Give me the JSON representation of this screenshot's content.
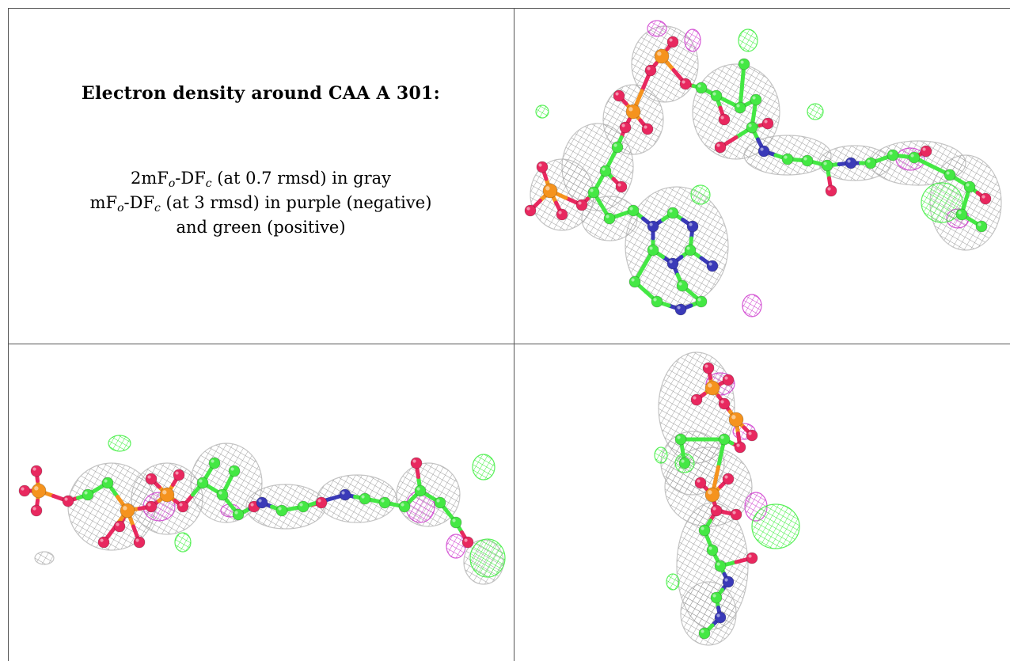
{
  "caption": {
    "title": "Electron density around CAA A 301:",
    "line1_prefix": "2mF",
    "line1_sub1": "o",
    "line1_mid": "-DF",
    "line1_sub2": "c",
    "line1_suffix": " (at 0.7 rmsd) in gray",
    "line2_prefix": "mF",
    "line2_sub1": "o",
    "line2_mid": "-DF",
    "line2_sub2": "c",
    "line2_suffix": " (at 3 rmsd) in purple (negative)",
    "line3": "and green (positive)"
  },
  "colors": {
    "mesh_gray": "#9a9a9a",
    "negative_density": "#cc33cc",
    "positive_density": "#33ee33",
    "carbon": "#44e844",
    "oxygen": "#e8285f",
    "phosphorus": "#f5931e",
    "nitrogen": "#3a3ab8"
  },
  "panels": [
    {
      "id": "top-right",
      "view": "ligand-view-1"
    },
    {
      "id": "bottom-left",
      "view": "ligand-view-2"
    },
    {
      "id": "bottom-right",
      "view": "ligand-view-3"
    }
  ]
}
